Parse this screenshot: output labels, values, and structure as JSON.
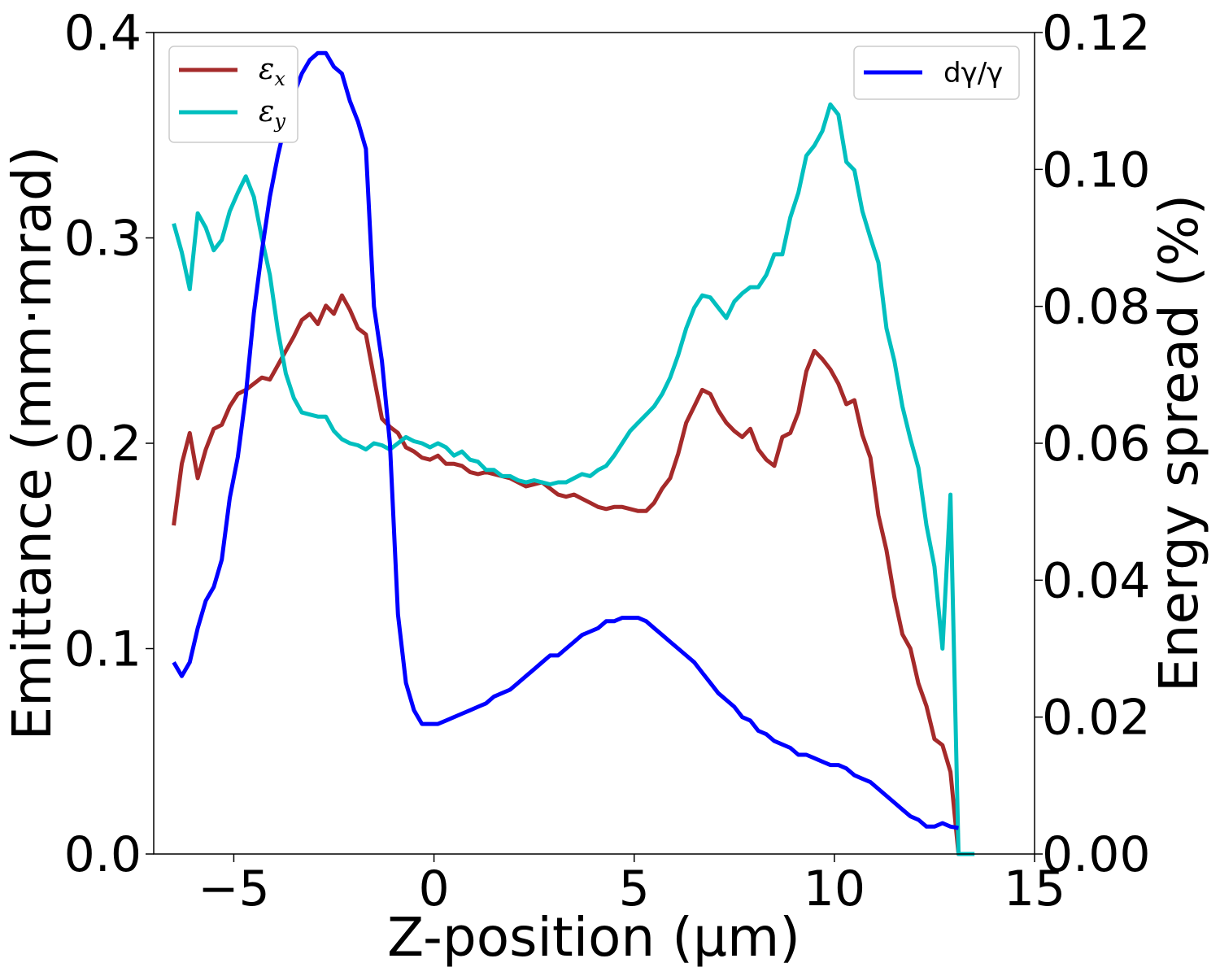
{
  "chart_data": {
    "type": "line",
    "title": "",
    "xlabel": "Z-position (μm)",
    "ylabel_left": "Emittance (mm·mrad)",
    "ylabel_right": "Energy spread (%)",
    "xlim": [
      -7,
      15
    ],
    "ylim_left": [
      0.0,
      0.4
    ],
    "ylim_right": [
      0.0,
      0.12
    ],
    "x_ticks": [
      -5,
      0,
      5,
      10,
      15
    ],
    "x_tick_labels": [
      "−5",
      "0",
      "5",
      "10",
      "15"
    ],
    "y_left_ticks": [
      0.0,
      0.1,
      0.2,
      0.3,
      0.4
    ],
    "y_left_tick_labels": [
      "0.0",
      "0.1",
      "0.2",
      "0.3",
      "0.4"
    ],
    "y_right_ticks": [
      0.0,
      0.02,
      0.04,
      0.06,
      0.08,
      0.1,
      0.12
    ],
    "y_right_tick_labels": [
      "0.00",
      "0.02",
      "0.04",
      "0.06",
      "0.08",
      "0.10",
      "0.12"
    ],
    "grid": false,
    "legends": [
      {
        "placement": "top-left",
        "entries": [
          {
            "symbol": "ε",
            "subscript": "x",
            "color": "#a52a2a"
          },
          {
            "symbol": "ε",
            "subscript": "y",
            "color": "#00bfbf"
          }
        ]
      },
      {
        "placement": "top-right",
        "entries": [
          {
            "label": "dγ/γ",
            "color": "#0000ff"
          }
        ]
      }
    ],
    "series": [
      {
        "name": "εx",
        "axis": "left",
        "color": "#a52a2a",
        "x": [
          -6.5,
          -6.3,
          -6.1,
          -5.9,
          -5.7,
          -5.5,
          -5.3,
          -5.1,
          -4.9,
          -4.7,
          -4.5,
          -4.3,
          -4.1,
          -3.9,
          -3.7,
          -3.5,
          -3.3,
          -3.1,
          -2.9,
          -2.7,
          -2.5,
          -2.3,
          -2.1,
          -1.9,
          -1.7,
          -1.5,
          -1.3,
          -1.1,
          -0.9,
          -0.7,
          -0.5,
          -0.3,
          -0.1,
          0.1,
          0.3,
          0.5,
          0.7,
          0.9,
          1.1,
          1.3,
          1.5,
          1.7,
          1.9,
          2.1,
          2.3,
          2.5,
          2.7,
          2.9,
          3.1,
          3.3,
          3.5,
          3.7,
          3.9,
          4.1,
          4.3,
          4.5,
          4.7,
          4.9,
          5.1,
          5.3,
          5.5,
          5.7,
          5.9,
          6.1,
          6.3,
          6.5,
          6.7,
          6.9,
          7.1,
          7.3,
          7.5,
          7.7,
          7.9,
          8.1,
          8.3,
          8.5,
          8.7,
          8.9,
          9.1,
          9.3,
          9.5,
          9.7,
          9.9,
          10.1,
          10.3,
          10.5,
          10.7,
          10.9,
          11.1,
          11.3,
          11.5,
          11.7,
          11.9,
          12.1,
          12.3,
          12.5,
          12.7,
          12.9,
          13.1,
          13.3
        ],
        "values": [
          0.16,
          0.19,
          0.205,
          0.183,
          0.197,
          0.207,
          0.209,
          0.218,
          0.224,
          0.226,
          0.229,
          0.232,
          0.231,
          0.238,
          0.245,
          0.252,
          0.26,
          0.263,
          0.258,
          0.267,
          0.263,
          0.272,
          0.265,
          0.256,
          0.253,
          0.232,
          0.212,
          0.208,
          0.205,
          0.198,
          0.196,
          0.193,
          0.192,
          0.194,
          0.19,
          0.19,
          0.189,
          0.186,
          0.185,
          0.186,
          0.185,
          0.184,
          0.183,
          0.181,
          0.179,
          0.18,
          0.181,
          0.178,
          0.175,
          0.174,
          0.175,
          0.173,
          0.171,
          0.169,
          0.168,
          0.169,
          0.169,
          0.168,
          0.167,
          0.167,
          0.171,
          0.178,
          0.183,
          0.195,
          0.21,
          0.218,
          0.226,
          0.224,
          0.216,
          0.21,
          0.206,
          0.203,
          0.207,
          0.197,
          0.192,
          0.189,
          0.203,
          0.205,
          0.215,
          0.235,
          0.245,
          0.241,
          0.236,
          0.229,
          0.219,
          0.221,
          0.204,
          0.193,
          0.165,
          0.148,
          0.125,
          0.107,
          0.1,
          0.083,
          0.072,
          0.056,
          0.053,
          0.04,
          0.0,
          0.0
        ]
      },
      {
        "name": "εy",
        "axis": "left",
        "color": "#00bfbf",
        "x": [
          -6.5,
          -6.3,
          -6.1,
          -5.9,
          -5.7,
          -5.5,
          -5.3,
          -5.1,
          -4.9,
          -4.7,
          -4.5,
          -4.3,
          -4.1,
          -3.9,
          -3.7,
          -3.5,
          -3.3,
          -3.1,
          -2.9,
          -2.7,
          -2.5,
          -2.3,
          -2.1,
          -1.9,
          -1.7,
          -1.5,
          -1.3,
          -1.1,
          -0.9,
          -0.7,
          -0.5,
          -0.3,
          -0.1,
          0.1,
          0.3,
          0.5,
          0.7,
          0.9,
          1.1,
          1.3,
          1.5,
          1.7,
          1.9,
          2.1,
          2.3,
          2.5,
          2.7,
          2.9,
          3.1,
          3.3,
          3.5,
          3.7,
          3.9,
          4.1,
          4.3,
          4.5,
          4.7,
          4.9,
          5.1,
          5.3,
          5.5,
          5.7,
          5.9,
          6.1,
          6.3,
          6.5,
          6.7,
          6.9,
          7.1,
          7.3,
          7.5,
          7.7,
          7.9,
          8.1,
          8.3,
          8.5,
          8.7,
          8.9,
          9.1,
          9.3,
          9.5,
          9.7,
          9.9,
          10.1,
          10.3,
          10.5,
          10.7,
          10.9,
          11.1,
          11.3,
          11.5,
          11.7,
          11.9,
          12.1,
          12.3,
          12.5,
          12.7,
          12.9,
          13.1,
          13.3,
          13.5
        ],
        "values": [
          0.307,
          0.293,
          0.275,
          0.312,
          0.305,
          0.294,
          0.299,
          0.313,
          0.322,
          0.33,
          0.32,
          0.3,
          0.282,
          0.255,
          0.234,
          0.222,
          0.215,
          0.214,
          0.213,
          0.213,
          0.206,
          0.202,
          0.2,
          0.199,
          0.197,
          0.2,
          0.199,
          0.197,
          0.2,
          0.203,
          0.201,
          0.2,
          0.198,
          0.2,
          0.198,
          0.194,
          0.196,
          0.192,
          0.191,
          0.187,
          0.187,
          0.184,
          0.184,
          0.182,
          0.181,
          0.182,
          0.181,
          0.18,
          0.181,
          0.181,
          0.183,
          0.185,
          0.184,
          0.187,
          0.189,
          0.194,
          0.2,
          0.206,
          0.21,
          0.214,
          0.218,
          0.224,
          0.232,
          0.243,
          0.256,
          0.266,
          0.272,
          0.271,
          0.266,
          0.261,
          0.269,
          0.273,
          0.276,
          0.276,
          0.282,
          0.292,
          0.292,
          0.31,
          0.322,
          0.34,
          0.345,
          0.352,
          0.365,
          0.36,
          0.337,
          0.333,
          0.313,
          0.3,
          0.288,
          0.256,
          0.24,
          0.218,
          0.202,
          0.188,
          0.16,
          0.14,
          0.1,
          0.175,
          0.0,
          0.0,
          0.0
        ]
      },
      {
        "name": "dγ/γ",
        "axis": "right",
        "color": "#0000ff",
        "x": [
          -6.5,
          -6.3,
          -6.1,
          -5.9,
          -5.7,
          -5.5,
          -5.3,
          -5.1,
          -4.9,
          -4.7,
          -4.5,
          -4.3,
          -4.1,
          -3.9,
          -3.7,
          -3.5,
          -3.3,
          -3.1,
          -2.9,
          -2.7,
          -2.5,
          -2.3,
          -2.1,
          -1.9,
          -1.7,
          -1.5,
          -1.3,
          -1.1,
          -0.9,
          -0.7,
          -0.5,
          -0.3,
          -0.1,
          0.1,
          0.3,
          0.5,
          0.7,
          0.9,
          1.1,
          1.3,
          1.5,
          1.7,
          1.9,
          2.1,
          2.3,
          2.5,
          2.7,
          2.9,
          3.1,
          3.3,
          3.5,
          3.7,
          3.9,
          4.1,
          4.3,
          4.5,
          4.7,
          4.9,
          5.1,
          5.3,
          5.5,
          5.7,
          5.9,
          6.1,
          6.3,
          6.5,
          6.7,
          6.9,
          7.1,
          7.3,
          7.5,
          7.7,
          7.9,
          8.1,
          8.3,
          8.5,
          8.7,
          8.9,
          9.1,
          9.3,
          9.5,
          9.7,
          9.9,
          10.1,
          10.3,
          10.5,
          10.7,
          10.9,
          11.1,
          11.3,
          11.5,
          11.7,
          11.9,
          12.1,
          12.3,
          12.5,
          12.7,
          12.9,
          13.1
        ],
        "values": [
          0.028,
          0.026,
          0.028,
          0.033,
          0.037,
          0.039,
          0.043,
          0.052,
          0.058,
          0.067,
          0.079,
          0.088,
          0.096,
          0.102,
          0.107,
          0.111,
          0.114,
          0.116,
          0.117,
          0.117,
          0.115,
          0.114,
          0.11,
          0.107,
          0.103,
          0.08,
          0.072,
          0.06,
          0.035,
          0.025,
          0.021,
          0.019,
          0.019,
          0.019,
          0.0195,
          0.02,
          0.0205,
          0.021,
          0.0215,
          0.022,
          0.023,
          0.0235,
          0.024,
          0.025,
          0.026,
          0.027,
          0.028,
          0.029,
          0.029,
          0.03,
          0.031,
          0.032,
          0.0325,
          0.033,
          0.034,
          0.034,
          0.0345,
          0.0345,
          0.0345,
          0.034,
          0.033,
          0.032,
          0.031,
          0.03,
          0.029,
          0.028,
          0.0265,
          0.025,
          0.0235,
          0.0225,
          0.0215,
          0.02,
          0.0195,
          0.018,
          0.0175,
          0.0165,
          0.016,
          0.0155,
          0.0145,
          0.0145,
          0.014,
          0.0135,
          0.013,
          0.013,
          0.0125,
          0.0115,
          0.011,
          0.0105,
          0.0095,
          0.0085,
          0.0075,
          0.0065,
          0.0055,
          0.005,
          0.004,
          0.004,
          0.0045,
          0.004,
          0.0038
        ]
      }
    ]
  }
}
